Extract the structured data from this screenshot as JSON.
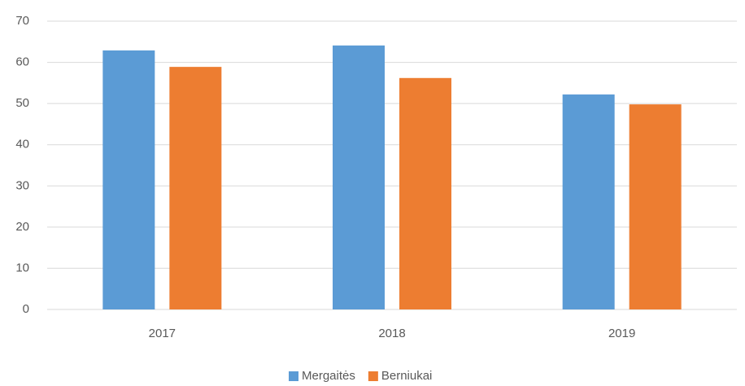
{
  "chart_data": {
    "type": "bar",
    "categories": [
      "2017",
      "2018",
      "2019"
    ],
    "series": [
      {
        "name": "Mergaitės",
        "color": "#5b9bd5",
        "values": [
          62.9,
          64.1,
          52.2
        ]
      },
      {
        "name": "Berniukai",
        "color": "#ed7d31",
        "values": [
          58.9,
          56.2,
          49.8
        ]
      }
    ],
    "ylim": [
      0,
      70
    ],
    "yticks": [
      0,
      10,
      20,
      30,
      40,
      50,
      60,
      70
    ],
    "grid": true,
    "legend": "bottom"
  }
}
